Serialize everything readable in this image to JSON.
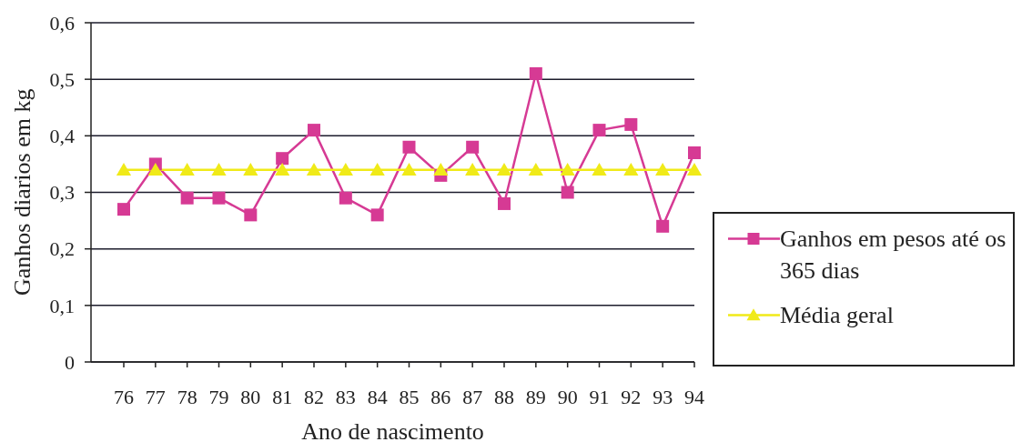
{
  "chart_data": {
    "type": "line",
    "xlabel": "Ano de nascimento",
    "ylabel": "Ganhos diarios em kg",
    "categories": [
      "76",
      "77",
      "78",
      "79",
      "80",
      "81",
      "82",
      "83",
      "84",
      "85",
      "86",
      "87",
      "88",
      "89",
      "90",
      "91",
      "92",
      "93",
      "94"
    ],
    "series": [
      {
        "name": "Ganhos em pesos até os 365 dias",
        "color": "#d63a94",
        "marker": "square",
        "values": [
          0.27,
          0.35,
          0.29,
          0.29,
          0.26,
          0.36,
          0.41,
          0.29,
          0.26,
          0.38,
          0.33,
          0.38,
          0.28,
          0.51,
          0.3,
          0.41,
          0.42,
          0.24,
          0.37
        ]
      },
      {
        "name": "Média geral",
        "color": "#f0ea18",
        "marker": "triangle",
        "values": [
          0.34,
          0.34,
          0.34,
          0.34,
          0.34,
          0.34,
          0.34,
          0.34,
          0.34,
          0.34,
          0.34,
          0.34,
          0.34,
          0.34,
          0.34,
          0.34,
          0.34,
          0.34,
          0.34
        ]
      }
    ],
    "ylim": [
      0,
      0.6
    ],
    "yticks": [
      0,
      {
        "value": 0.1,
        "label": "0,1"
      },
      {
        "value": 0.2,
        "label": "0,2"
      },
      {
        "value": 0.3,
        "label": "0,3"
      },
      {
        "value": 0.4,
        "label": "0,4"
      },
      {
        "value": 0.5,
        "label": "0,5"
      },
      {
        "value": 0.6,
        "label": "0,6"
      }
    ],
    "grid": "y",
    "legend": "right",
    "line_style": "solid"
  }
}
